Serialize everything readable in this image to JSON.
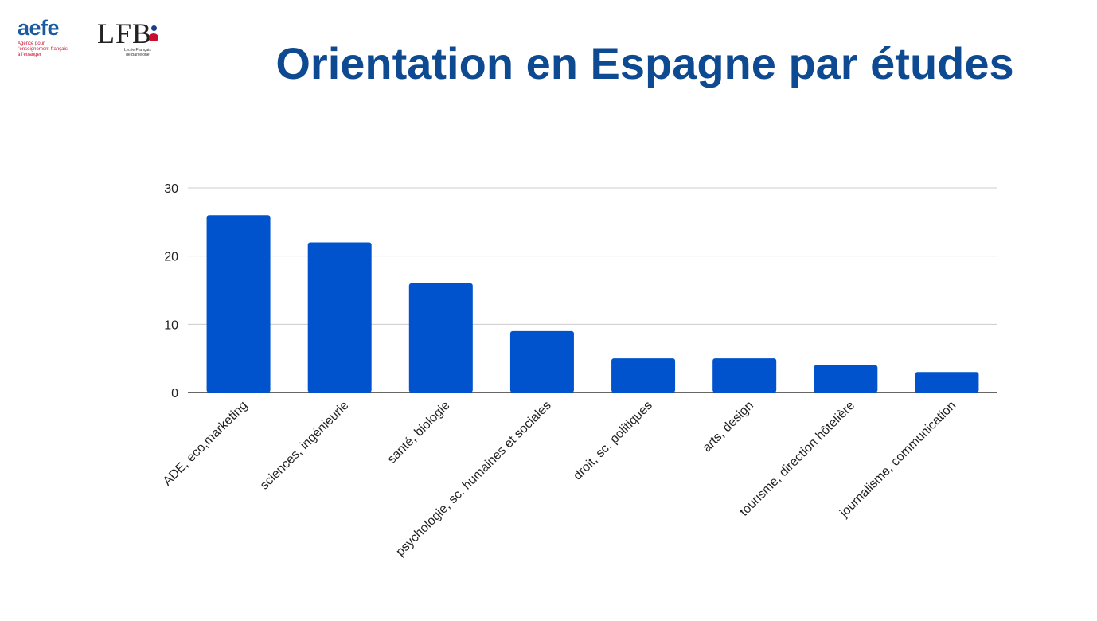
{
  "slide": {
    "title": "Orientation en Espagne par études"
  },
  "logos": {
    "aefe": {
      "word": "aefe",
      "subtitle": "Agence pour\nl'enseignement français\nà l'étranger"
    },
    "lfb": {
      "word": "LFB",
      "subtitle": "Lycée Français\nde Barcelone"
    }
  },
  "colors": {
    "bar": "#0053CC",
    "title": "#0E4A91",
    "grid": "#CCCCCC",
    "axis": "#333333"
  },
  "chart_data": {
    "type": "bar",
    "title": "",
    "xlabel": "",
    "ylabel": "",
    "categories": [
      "ADE, eco,marketing",
      "sciences, ingénieurie",
      "santé, biologie",
      "psychologie, sc. humaines et sociales",
      "droit, sc. politiques",
      "arts, design",
      "tourisme, direction hôtelière",
      "journalisme, communication"
    ],
    "values": [
      26,
      22,
      16,
      9,
      5,
      5,
      4,
      3
    ],
    "ylim": [
      0,
      30
    ],
    "yticks": [
      0,
      10,
      20,
      30
    ],
    "grid": true,
    "legend": "none"
  }
}
